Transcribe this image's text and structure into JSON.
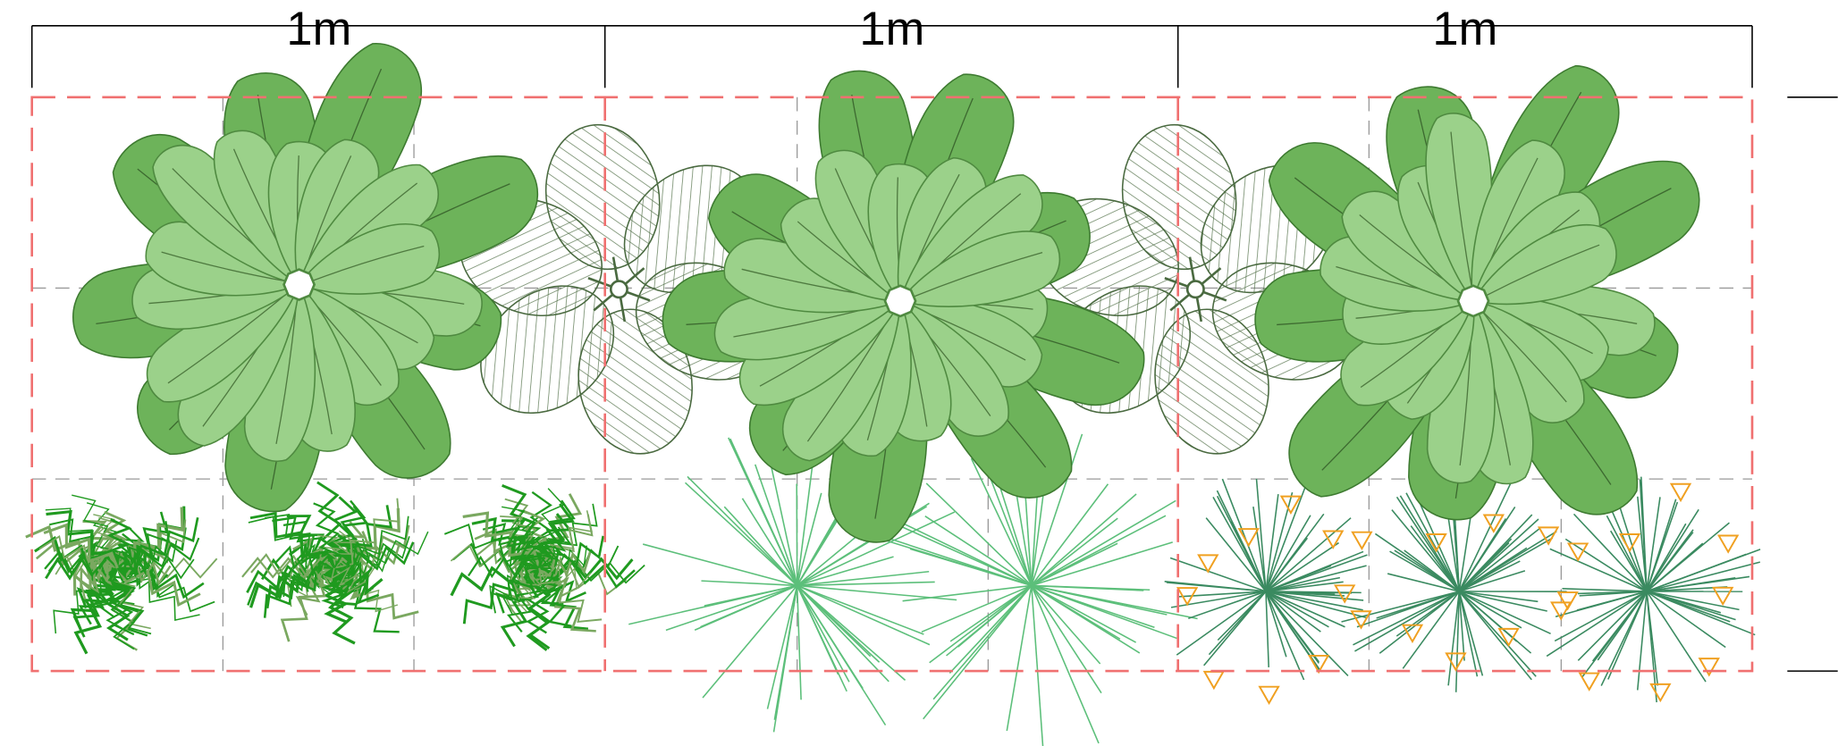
{
  "dimensions": [
    {
      "label": "1m"
    },
    {
      "label": "1m"
    },
    {
      "label": "1m"
    }
  ]
}
